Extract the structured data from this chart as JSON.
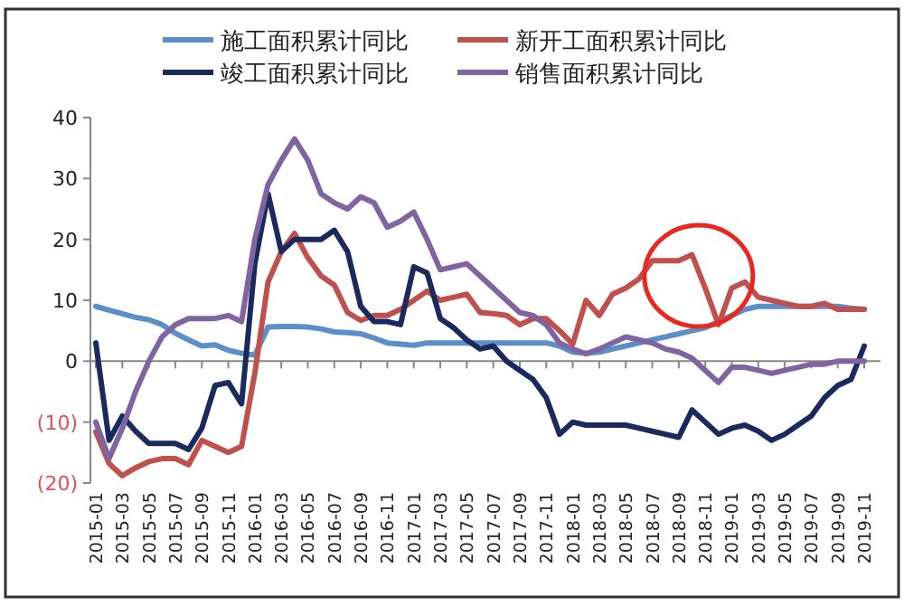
{
  "chart_data": {
    "type": "line",
    "legend": "top",
    "marker": "none",
    "line_style": "solid",
    "categories": [
      "2015-01",
      null,
      "2015-03",
      null,
      "2015-05",
      null,
      "2015-07",
      null,
      "2015-09",
      null,
      "2015-11",
      null,
      "2016-01",
      null,
      "2016-03",
      null,
      "2016-05",
      null,
      "2016-07",
      null,
      "2016-09",
      null,
      "2016-11",
      null,
      "2017-01",
      null,
      "2017-03",
      null,
      "2017-05",
      null,
      "2017-07",
      null,
      "2017-09",
      null,
      "2017-11",
      null,
      "2018-01",
      null,
      "2018-03",
      null,
      "2018-05",
      null,
      "2018-07",
      null,
      "2018-09",
      null,
      "2018-11",
      null,
      "2019-01",
      null,
      "2019-03",
      null,
      "2019-05",
      null,
      "2019-07",
      null,
      "2019-09",
      null,
      "2019-11"
    ],
    "ylim": [
      -20,
      40
    ],
    "yticks": [
      {
        "value": -20,
        "label": "(20)"
      },
      {
        "value": -10,
        "label": "(10)"
      },
      0,
      10,
      20,
      30,
      40
    ],
    "series": [
      {
        "name": "施工面积累计同比",
        "color": "#5b8fc9",
        "values": [
          9,
          8.4,
          7.8,
          7.2,
          6.8,
          6,
          4.6,
          3.5,
          2.5,
          2.7,
          1.8,
          1.3,
          1,
          5.6,
          5.7,
          5.7,
          5.6,
          5.3,
          4.8,
          4.7,
          4.5,
          3.8,
          3,
          2.8,
          2.6,
          3,
          3,
          3,
          3,
          3,
          3,
          3,
          3,
          3,
          3,
          2.5,
          1.5,
          1.3,
          1.5,
          2,
          2.5,
          3,
          3.5,
          4,
          4.5,
          5,
          5.5,
          6.5,
          7.5,
          8.5,
          9,
          9,
          9,
          9,
          9,
          9,
          9,
          8.7,
          8.5
        ]
      },
      {
        "name": "新开工面积累计同比",
        "color": "#c0504d",
        "values": [
          -11.6,
          -16.8,
          -18.8,
          -17.5,
          -16.5,
          -16,
          -16,
          -17,
          -13,
          -14,
          -15,
          -14,
          -2,
          13,
          18,
          21,
          17,
          14,
          12.5,
          8,
          6.7,
          7.5,
          7.5,
          8.5,
          10,
          11.5,
          10,
          10.5,
          11,
          8,
          7.8,
          7.5,
          6,
          7,
          7,
          5,
          2.8,
          10,
          7.5,
          11,
          12,
          13.5,
          16.5,
          16.5,
          16.5,
          17.5,
          12,
          6,
          12,
          13,
          10.5,
          10,
          9.5,
          9,
          9,
          9.5,
          8.5,
          8.5,
          8.5
        ]
      },
      {
        "name": "竣工面积累计同比",
        "color": "#1b2a5e",
        "values": [
          3,
          -13,
          -9,
          -11.5,
          -13.5,
          -13.5,
          -13.5,
          -14.5,
          -11,
          -4,
          -3.5,
          -7,
          16,
          27.5,
          18,
          20,
          20,
          20,
          21.5,
          18,
          9,
          6.5,
          6.5,
          6,
          15.5,
          14.5,
          7,
          5.5,
          3.5,
          2,
          2.5,
          0,
          -1.5,
          -3,
          -6,
          -12,
          -10,
          -10.5,
          -10.5,
          -10.5,
          -10.5,
          -11,
          -11.5,
          -12,
          -12.5,
          -8,
          -10,
          -12,
          -11,
          -10.5,
          -11.5,
          -13,
          -12,
          -10.5,
          -9,
          -6,
          -4,
          -3,
          2.5
        ]
      },
      {
        "name": "销售面积累计同比",
        "color": "#8064a2",
        "values": [
          -10,
          -16,
          -11,
          -5,
          0,
          4,
          6,
          7,
          7,
          7,
          7.5,
          6.5,
          20,
          29,
          33,
          36.5,
          33,
          27.5,
          26,
          25,
          27,
          26,
          22,
          23,
          24.5,
          20,
          15,
          15.5,
          16,
          14,
          12,
          10,
          8,
          7.5,
          6,
          3,
          2,
          1.2,
          2,
          3,
          4,
          3.5,
          3,
          2,
          1.5,
          0.5,
          -1.5,
          -3.5,
          -1,
          -1,
          -1.5,
          -2,
          -1.5,
          -1,
          -0.5,
          -0.5,
          0,
          0,
          0
        ]
      }
    ]
  }
}
